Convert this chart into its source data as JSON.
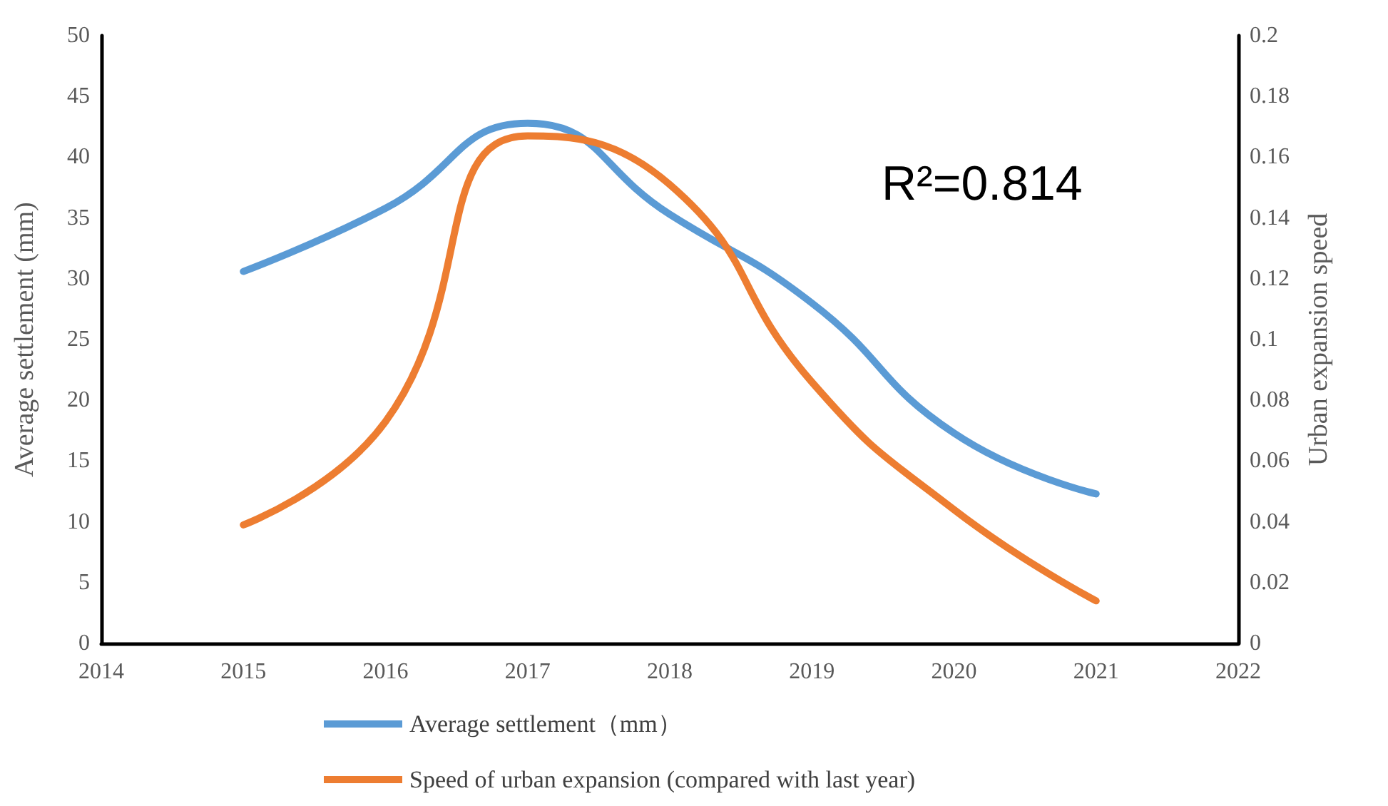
{
  "chart_data": {
    "type": "line",
    "x": [
      2015,
      2016,
      2017,
      2018,
      2019,
      2020,
      2021
    ],
    "series": [
      {
        "name": "Average settlement（mm）",
        "color": "#5b9bd5",
        "values": [
          30.6,
          35.8,
          42.8,
          35.3,
          28.0,
          17.3,
          12.3
        ]
      },
      {
        "name": "Speed of urban expansion (compared with last year)",
        "color": "#ed7d31",
        "axis": "y2",
        "values": [
          0.039,
          0.073,
          0.167,
          0.151,
          0.086,
          0.044,
          0.014
        ]
      }
    ],
    "ylabel": "Average settlement (mm)",
    "y2label": "Urban expansion speed",
    "xlim": [
      2014,
      2022
    ],
    "xticks": [
      2014,
      2015,
      2016,
      2017,
      2018,
      2019,
      2020,
      2021,
      2022
    ],
    "ylim": [
      0,
      50
    ],
    "yticks": [
      0,
      5,
      10,
      15,
      20,
      25,
      30,
      35,
      40,
      45,
      50
    ],
    "y2lim": [
      0,
      0.2
    ],
    "y2ticks": [
      0,
      0.02,
      0.04,
      0.06,
      0.08,
      0.1,
      0.12,
      0.14,
      0.16,
      0.18,
      0.2
    ],
    "annotations": [
      "R²=0.814"
    ],
    "grid": false,
    "legend": "bottom",
    "marker": "none",
    "line_style": "solid"
  }
}
